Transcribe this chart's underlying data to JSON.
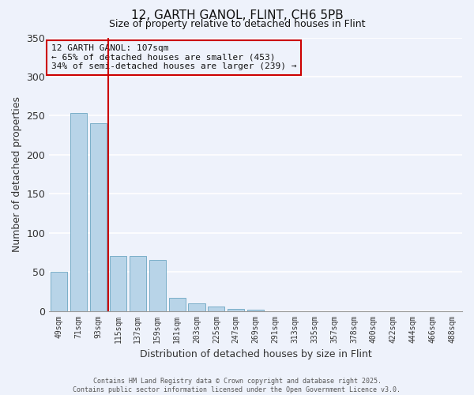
{
  "title": "12, GARTH GANOL, FLINT, CH6 5PB",
  "subtitle": "Size of property relative to detached houses in Flint",
  "xlabel": "Distribution of detached houses by size in Flint",
  "ylabel": "Number of detached properties",
  "categories": [
    "49sqm",
    "71sqm",
    "93sqm",
    "115sqm",
    "137sqm",
    "159sqm",
    "181sqm",
    "203sqm",
    "225sqm",
    "247sqm",
    "269sqm",
    "291sqm",
    "313sqm",
    "335sqm",
    "357sqm",
    "378sqm",
    "400sqm",
    "422sqm",
    "444sqm",
    "466sqm",
    "488sqm"
  ],
  "values": [
    50,
    253,
    240,
    70,
    70,
    65,
    17,
    10,
    6,
    3,
    2,
    0,
    0,
    0,
    0,
    0,
    0,
    0,
    0,
    0,
    0
  ],
  "bar_color": "#b8d4e8",
  "bar_edgecolor": "#7aaec8",
  "ylim": [
    0,
    350
  ],
  "yticks": [
    0,
    50,
    100,
    150,
    200,
    250,
    300,
    350
  ],
  "vline_color": "#cc0000",
  "annotation_line1": "12 GARTH GANOL: 107sqm",
  "annotation_line2": "← 65% of detached houses are smaller (453)",
  "annotation_line3": "34% of semi-detached houses are larger (239) →",
  "annotation_box_color": "#cc0000",
  "bg_color": "#eef2fb",
  "grid_color": "#ffffff",
  "footer_line1": "Contains HM Land Registry data © Crown copyright and database right 2025.",
  "footer_line2": "Contains public sector information licensed under the Open Government Licence v3.0."
}
